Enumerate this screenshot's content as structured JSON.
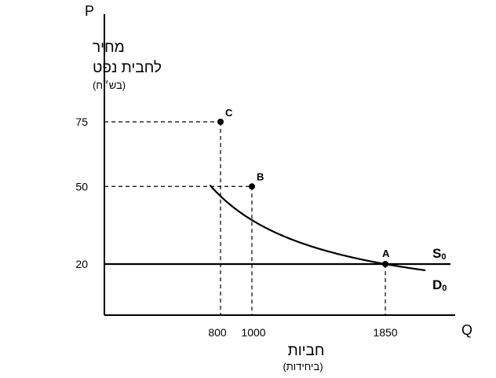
{
  "chart_data": {
    "type": "line",
    "x_axis_letter": "Q",
    "y_axis_letter": "P",
    "ylabel_line1": "מחיר",
    "ylabel_line2": "לחבית נפט",
    "ylabel_unit": "(בש״ח)",
    "xlabel": "חביות",
    "xlabel_unit": "(ביחידות)",
    "x_ticks": [
      800,
      1000,
      1850
    ],
    "y_ticks": [
      20,
      50,
      75
    ],
    "series": [
      {
        "name_main": "S",
        "name_sub": "0",
        "kind": "horizontal",
        "price": 20,
        "color": "#000000"
      },
      {
        "name_main": "D",
        "name_sub": "0",
        "kind": "constant-expenditure",
        "quantity_times_price": 37000,
        "color": "#000000"
      }
    ],
    "points": [
      {
        "label": "C",
        "x": 800,
        "y": 75
      },
      {
        "label": "B",
        "x": 1000,
        "y": 50
      },
      {
        "label": "A",
        "x": 1850,
        "y": 20
      }
    ]
  }
}
